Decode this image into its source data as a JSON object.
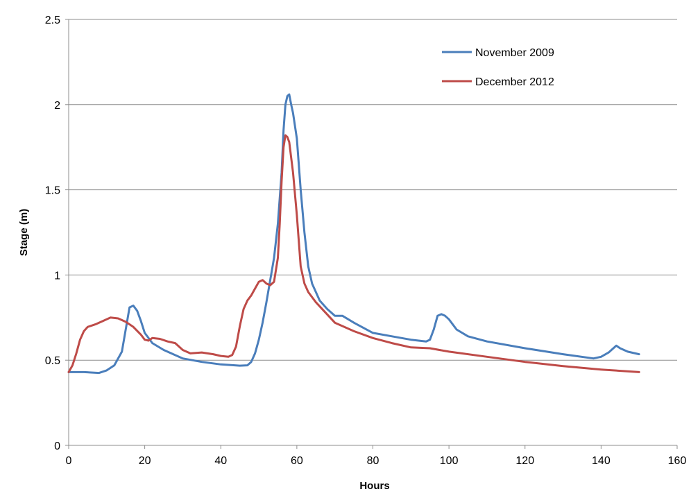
{
  "chart_data": {
    "type": "line",
    "title": "",
    "xlabel": "Hours",
    "ylabel": "Stage (m)",
    "xlim": [
      0,
      160
    ],
    "ylim": [
      0,
      2.5
    ],
    "xticks": [
      0,
      20,
      40,
      60,
      80,
      100,
      120,
      140,
      160
    ],
    "yticks": [
      0,
      0.5,
      1,
      1.5,
      2,
      2.5
    ],
    "ytick_labels": [
      "0",
      "0.5",
      "1",
      "1.5",
      "2",
      "2.5"
    ],
    "grid": "horizontal",
    "legend_position": "top-right",
    "series": [
      {
        "name": "November 2009",
        "color": "#4a7ebb",
        "points": [
          [
            0,
            0.43
          ],
          [
            4,
            0.43
          ],
          [
            8,
            0.425
          ],
          [
            10,
            0.44
          ],
          [
            12,
            0.47
          ],
          [
            14,
            0.55
          ],
          [
            15,
            0.68
          ],
          [
            16,
            0.81
          ],
          [
            17,
            0.82
          ],
          [
            18,
            0.79
          ],
          [
            19,
            0.73
          ],
          [
            20,
            0.66
          ],
          [
            22,
            0.6
          ],
          [
            25,
            0.56
          ],
          [
            30,
            0.51
          ],
          [
            35,
            0.49
          ],
          [
            40,
            0.475
          ],
          [
            45,
            0.468
          ],
          [
            47,
            0.47
          ],
          [
            48,
            0.49
          ],
          [
            49,
            0.54
          ],
          [
            50,
            0.62
          ],
          [
            51,
            0.72
          ],
          [
            52,
            0.84
          ],
          [
            53,
            0.97
          ],
          [
            54,
            1.1
          ],
          [
            55,
            1.3
          ],
          [
            56,
            1.6
          ],
          [
            56.5,
            1.85
          ],
          [
            57,
            2.0
          ],
          [
            57.5,
            2.05
          ],
          [
            58,
            2.06
          ],
          [
            58.5,
            2.0
          ],
          [
            59,
            1.95
          ],
          [
            60,
            1.8
          ],
          [
            61,
            1.5
          ],
          [
            62,
            1.25
          ],
          [
            63,
            1.05
          ],
          [
            64,
            0.95
          ],
          [
            66,
            0.85
          ],
          [
            68,
            0.8
          ],
          [
            70,
            0.76
          ],
          [
            72,
            0.76
          ],
          [
            75,
            0.72
          ],
          [
            80,
            0.66
          ],
          [
            85,
            0.64
          ],
          [
            90,
            0.62
          ],
          [
            94,
            0.61
          ],
          [
            95,
            0.62
          ],
          [
            96,
            0.68
          ],
          [
            97,
            0.76
          ],
          [
            98,
            0.77
          ],
          [
            99,
            0.76
          ],
          [
            100,
            0.74
          ],
          [
            102,
            0.68
          ],
          [
            105,
            0.64
          ],
          [
            110,
            0.61
          ],
          [
            120,
            0.57
          ],
          [
            130,
            0.535
          ],
          [
            138,
            0.51
          ],
          [
            140,
            0.52
          ],
          [
            142,
            0.545
          ],
          [
            144,
            0.585
          ],
          [
            145,
            0.57
          ],
          [
            147,
            0.55
          ],
          [
            150,
            0.535
          ]
        ]
      },
      {
        "name": "December 2012",
        "color": "#be4b48",
        "points": [
          [
            0,
            0.43
          ],
          [
            1,
            0.47
          ],
          [
            2,
            0.54
          ],
          [
            3,
            0.62
          ],
          [
            4,
            0.67
          ],
          [
            5,
            0.695
          ],
          [
            7,
            0.71
          ],
          [
            9,
            0.73
          ],
          [
            11,
            0.75
          ],
          [
            13,
            0.745
          ],
          [
            15,
            0.725
          ],
          [
            17,
            0.695
          ],
          [
            19,
            0.65
          ],
          [
            20,
            0.62
          ],
          [
            21,
            0.615
          ],
          [
            22,
            0.63
          ],
          [
            24,
            0.625
          ],
          [
            26,
            0.61
          ],
          [
            28,
            0.6
          ],
          [
            30,
            0.56
          ],
          [
            32,
            0.54
          ],
          [
            35,
            0.545
          ],
          [
            38,
            0.535
          ],
          [
            40,
            0.525
          ],
          [
            42,
            0.52
          ],
          [
            43,
            0.53
          ],
          [
            44,
            0.58
          ],
          [
            45,
            0.7
          ],
          [
            46,
            0.8
          ],
          [
            47,
            0.85
          ],
          [
            48,
            0.88
          ],
          [
            49,
            0.92
          ],
          [
            50,
            0.96
          ],
          [
            51,
            0.97
          ],
          [
            52,
            0.95
          ],
          [
            53,
            0.94
          ],
          [
            54,
            0.96
          ],
          [
            55,
            1.1
          ],
          [
            55.5,
            1.3
          ],
          [
            56,
            1.55
          ],
          [
            56.5,
            1.75
          ],
          [
            57,
            1.82
          ],
          [
            57.5,
            1.81
          ],
          [
            58,
            1.78
          ],
          [
            59,
            1.6
          ],
          [
            60,
            1.35
          ],
          [
            61,
            1.05
          ],
          [
            62,
            0.95
          ],
          [
            63,
            0.9
          ],
          [
            65,
            0.84
          ],
          [
            70,
            0.72
          ],
          [
            75,
            0.67
          ],
          [
            80,
            0.63
          ],
          [
            85,
            0.6
          ],
          [
            90,
            0.575
          ],
          [
            95,
            0.57
          ],
          [
            100,
            0.55
          ],
          [
            110,
            0.52
          ],
          [
            120,
            0.49
          ],
          [
            130,
            0.465
          ],
          [
            140,
            0.445
          ],
          [
            150,
            0.43
          ]
        ]
      }
    ]
  }
}
